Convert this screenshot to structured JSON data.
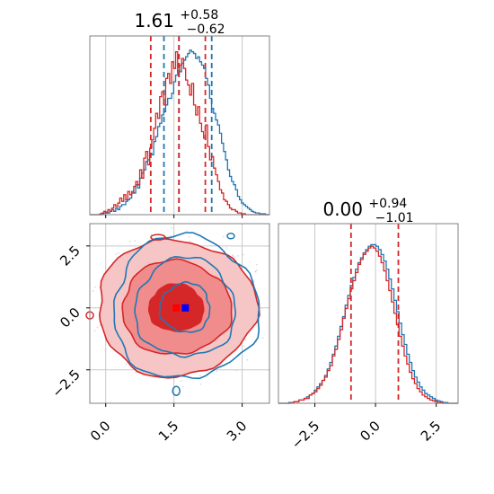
{
  "chart_data": [
    {
      "panel": "marginal-x",
      "type": "histogram",
      "title": {
        "main": "1.61",
        "upper": "+0.58",
        "lower": "−0.62"
      },
      "xlim": [
        -0.35,
        3.6
      ],
      "grid": true,
      "series": [
        {
          "color": "#1f77b4",
          "step": "stepped-outline",
          "x_range": [
            -0.35,
            3.6
          ],
          "counts": [
            0,
            0,
            0,
            0,
            0,
            0,
            0.5,
            1,
            1.5,
            1,
            2,
            3,
            2,
            4,
            3,
            5,
            6,
            6,
            8,
            9,
            10,
            14,
            13,
            18,
            16,
            22,
            25,
            27,
            32,
            33,
            37,
            36,
            44,
            47,
            53,
            55,
            60,
            62,
            66,
            70,
            70,
            73,
            80,
            84,
            87,
            86,
            91,
            93,
            95,
            97,
            99,
            98,
            97,
            94,
            95,
            92,
            90,
            88,
            82,
            78,
            70,
            64,
            61,
            57,
            54,
            49,
            43,
            38,
            33,
            27,
            23,
            20,
            18,
            15,
            11,
            9,
            7,
            6,
            5,
            4,
            3,
            2,
            1.5,
            1,
            1,
            0.5,
            0.5,
            0.5,
            0,
            0
          ],
          "quantile_lines": [
            1.28,
            1.61,
            2.33
          ]
        },
        {
          "color": "#d62728",
          "step": "stepped-outline",
          "x_range": [
            -0.35,
            3.6
          ],
          "counts": [
            0,
            0,
            0,
            0,
            0,
            0.5,
            1,
            2,
            1,
            3,
            2,
            4,
            6,
            5,
            7,
            10,
            8,
            12,
            9,
            14,
            12,
            13,
            17,
            20,
            18,
            27,
            22,
            34,
            38,
            30,
            40,
            45,
            52,
            61,
            58,
            71,
            74,
            66,
            82,
            85,
            79,
            92,
            88,
            98,
            86,
            90,
            94,
            88,
            81,
            78,
            72,
            79,
            66,
            60,
            65,
            55,
            50,
            46,
            54,
            41,
            33,
            35,
            28,
            24,
            20,
            15,
            13,
            9,
            8,
            6,
            4,
            3,
            3,
            2,
            1,
            1,
            0.5,
            0.5,
            0,
            0,
            0,
            0,
            0,
            0,
            0,
            0,
            0,
            0,
            0,
            0
          ],
          "quantile_lines": [
            0.99,
            1.61,
            2.19
          ]
        }
      ],
      "xticks": [
        0.0,
        1.5,
        3.0
      ]
    },
    {
      "panel": "joint-2d",
      "type": "contour",
      "xlim": [
        -0.35,
        3.6
      ],
      "ylim": [
        -3.85,
        3.4
      ],
      "xticks": [
        0.0,
        1.5,
        3.0
      ],
      "yticks": [
        -2.5,
        0.0,
        2.5
      ],
      "grid": true,
      "series": [
        {
          "color": "#1f77b4",
          "center": [
            1.75,
            0.0
          ],
          "sd": [
            0.55,
            1.0
          ],
          "levels": [
            0.39,
            0.86,
            0.99
          ],
          "filled": false,
          "marker": "blue-square"
        },
        {
          "color": "#d62728",
          "center": [
            1.55,
            0.0
          ],
          "sd": [
            0.6,
            0.95
          ],
          "levels": [
            0.39,
            0.86,
            0.99
          ],
          "filled": true,
          "marker": "red-square"
        }
      ]
    },
    {
      "panel": "marginal-y",
      "type": "histogram",
      "title": {
        "main": "0.00",
        "upper": "+0.94",
        "lower": "−1.01"
      },
      "xlim": [
        -4.0,
        3.4
      ],
      "xticks": [
        -2.5,
        0.0,
        2.5
      ],
      "grid": true,
      "series": [
        {
          "color": "#1f77b4",
          "step": "stepped-outline",
          "x_range": [
            -4.0,
            3.4
          ],
          "counts": [
            0,
            0,
            0,
            0,
            0.5,
            0.5,
            1,
            1,
            2,
            2,
            3,
            4,
            5,
            6,
            8,
            10,
            12,
            14,
            17,
            21,
            25,
            30,
            35,
            41,
            47,
            53,
            60,
            66,
            72,
            77,
            82,
            86,
            89,
            92,
            94,
            96,
            97,
            97,
            96,
            94,
            91,
            87,
            82,
            76,
            70,
            63,
            56,
            49,
            42,
            36,
            30,
            25,
            20,
            16,
            13,
            10,
            8,
            6,
            5,
            4,
            3,
            2,
            1.5,
            1,
            0.5,
            0.5,
            0,
            0,
            0,
            0
          ]
        },
        {
          "color": "#d62728",
          "step": "stepped-outline",
          "x_range": [
            -4.0,
            3.4
          ],
          "counts": [
            0,
            0,
            0,
            0,
            0,
            0.5,
            1,
            1,
            2,
            2,
            3,
            3,
            5,
            6,
            7,
            9,
            11,
            14,
            16,
            20,
            23,
            29,
            33,
            39,
            45,
            52,
            58,
            64,
            70,
            75,
            80,
            85,
            88,
            91,
            93,
            95,
            96,
            95,
            93,
            90,
            86,
            81,
            75,
            69,
            62,
            55,
            48,
            41,
            35,
            29,
            24,
            19,
            15,
            12,
            9,
            7,
            5,
            4,
            3,
            2,
            1.5,
            1,
            0.5,
            0.5,
            0,
            0,
            0,
            0,
            0,
            0
          ],
          "quantile_lines": [
            -1.01,
            0.0,
            0.94
          ]
        }
      ]
    }
  ],
  "colors": {
    "blue": "#1f77b4",
    "red": "#d62728",
    "red_mid": "#f08c8c",
    "red_light": "#f6c6c6",
    "grid": "#c8c8c8",
    "frame": "#808080"
  }
}
